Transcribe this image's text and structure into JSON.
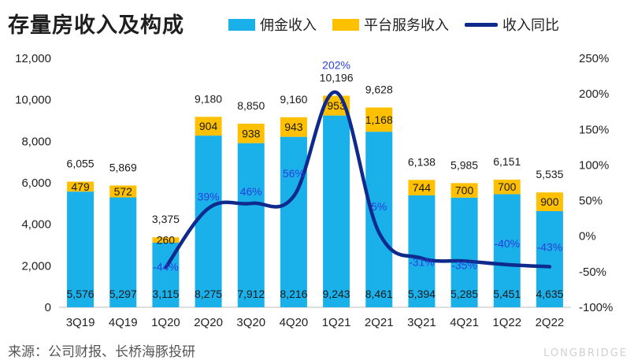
{
  "title": "存量房收入及构成",
  "source": "来源：公司财报、长桥海豚投研",
  "watermark": "LONGBRIDGE",
  "colors": {
    "commission": "#1ab0ea",
    "platform": "#ffc000",
    "yoy": "#0d2a8c"
  },
  "chart_data": {
    "type": "bar",
    "stacked": true,
    "categories": [
      "3Q19",
      "4Q19",
      "1Q20",
      "2Q20",
      "3Q20",
      "4Q20",
      "1Q21",
      "2Q21",
      "3Q21",
      "4Q21",
      "1Q22",
      "2Q22"
    ],
    "series": [
      {
        "name": "佣金收入",
        "values": [
          5576,
          5297,
          3115,
          8275,
          7912,
          8216,
          9243,
          8461,
          5394,
          5285,
          5451,
          4635
        ]
      },
      {
        "name": "平台服务收入",
        "values": [
          479,
          572,
          260,
          904,
          938,
          943,
          953,
          1168,
          744,
          700,
          700,
          900
        ]
      }
    ],
    "totals": [
      6055,
      5869,
      3375,
      9180,
      8850,
      9160,
      10196,
      9628,
      6138,
      5985,
      6151,
      5535
    ],
    "line_series": {
      "name": "收入同比",
      "axis": "right",
      "values": [
        null,
        null,
        -44,
        39,
        46,
        56,
        202,
        5,
        -31,
        -35,
        -40,
        -43
      ]
    },
    "left_axis": {
      "ylim": [
        0,
        12000
      ],
      "ticks": [
        "0",
        "2,000",
        "4,000",
        "6,000",
        "8,000",
        "10,000",
        "12,000"
      ]
    },
    "right_axis": {
      "ylim": [
        -100,
        250
      ],
      "ticks": [
        "-100%",
        "-50%",
        "0%",
        "50%",
        "100%",
        "150%",
        "200%",
        "250%"
      ]
    },
    "value_labels": {
      "commission": [
        "5,576",
        "5,297",
        "3,115",
        "8,275",
        "7,912",
        "8,216",
        "9,243",
        "8,461",
        "5,394",
        "5,285",
        "5,451",
        "4,635"
      ],
      "platform": [
        "479",
        "572",
        "260",
        "904",
        "938",
        "943",
        "953",
        "1,168",
        "744",
        "700",
        "700",
        "900"
      ],
      "totals": [
        "6,055",
        "5,869",
        "3,375",
        "9,180",
        "8,850",
        "9,160",
        "10,196",
        "9,628",
        "6,138",
        "5,985",
        "6,151",
        "5,535"
      ],
      "yoy": [
        "",
        "",
        "-44%",
        "39%",
        "46%",
        "56%",
        "202%",
        "5%",
        "-31%",
        "-35%",
        "-40%",
        "-43%"
      ]
    },
    "legend_position": "top"
  }
}
